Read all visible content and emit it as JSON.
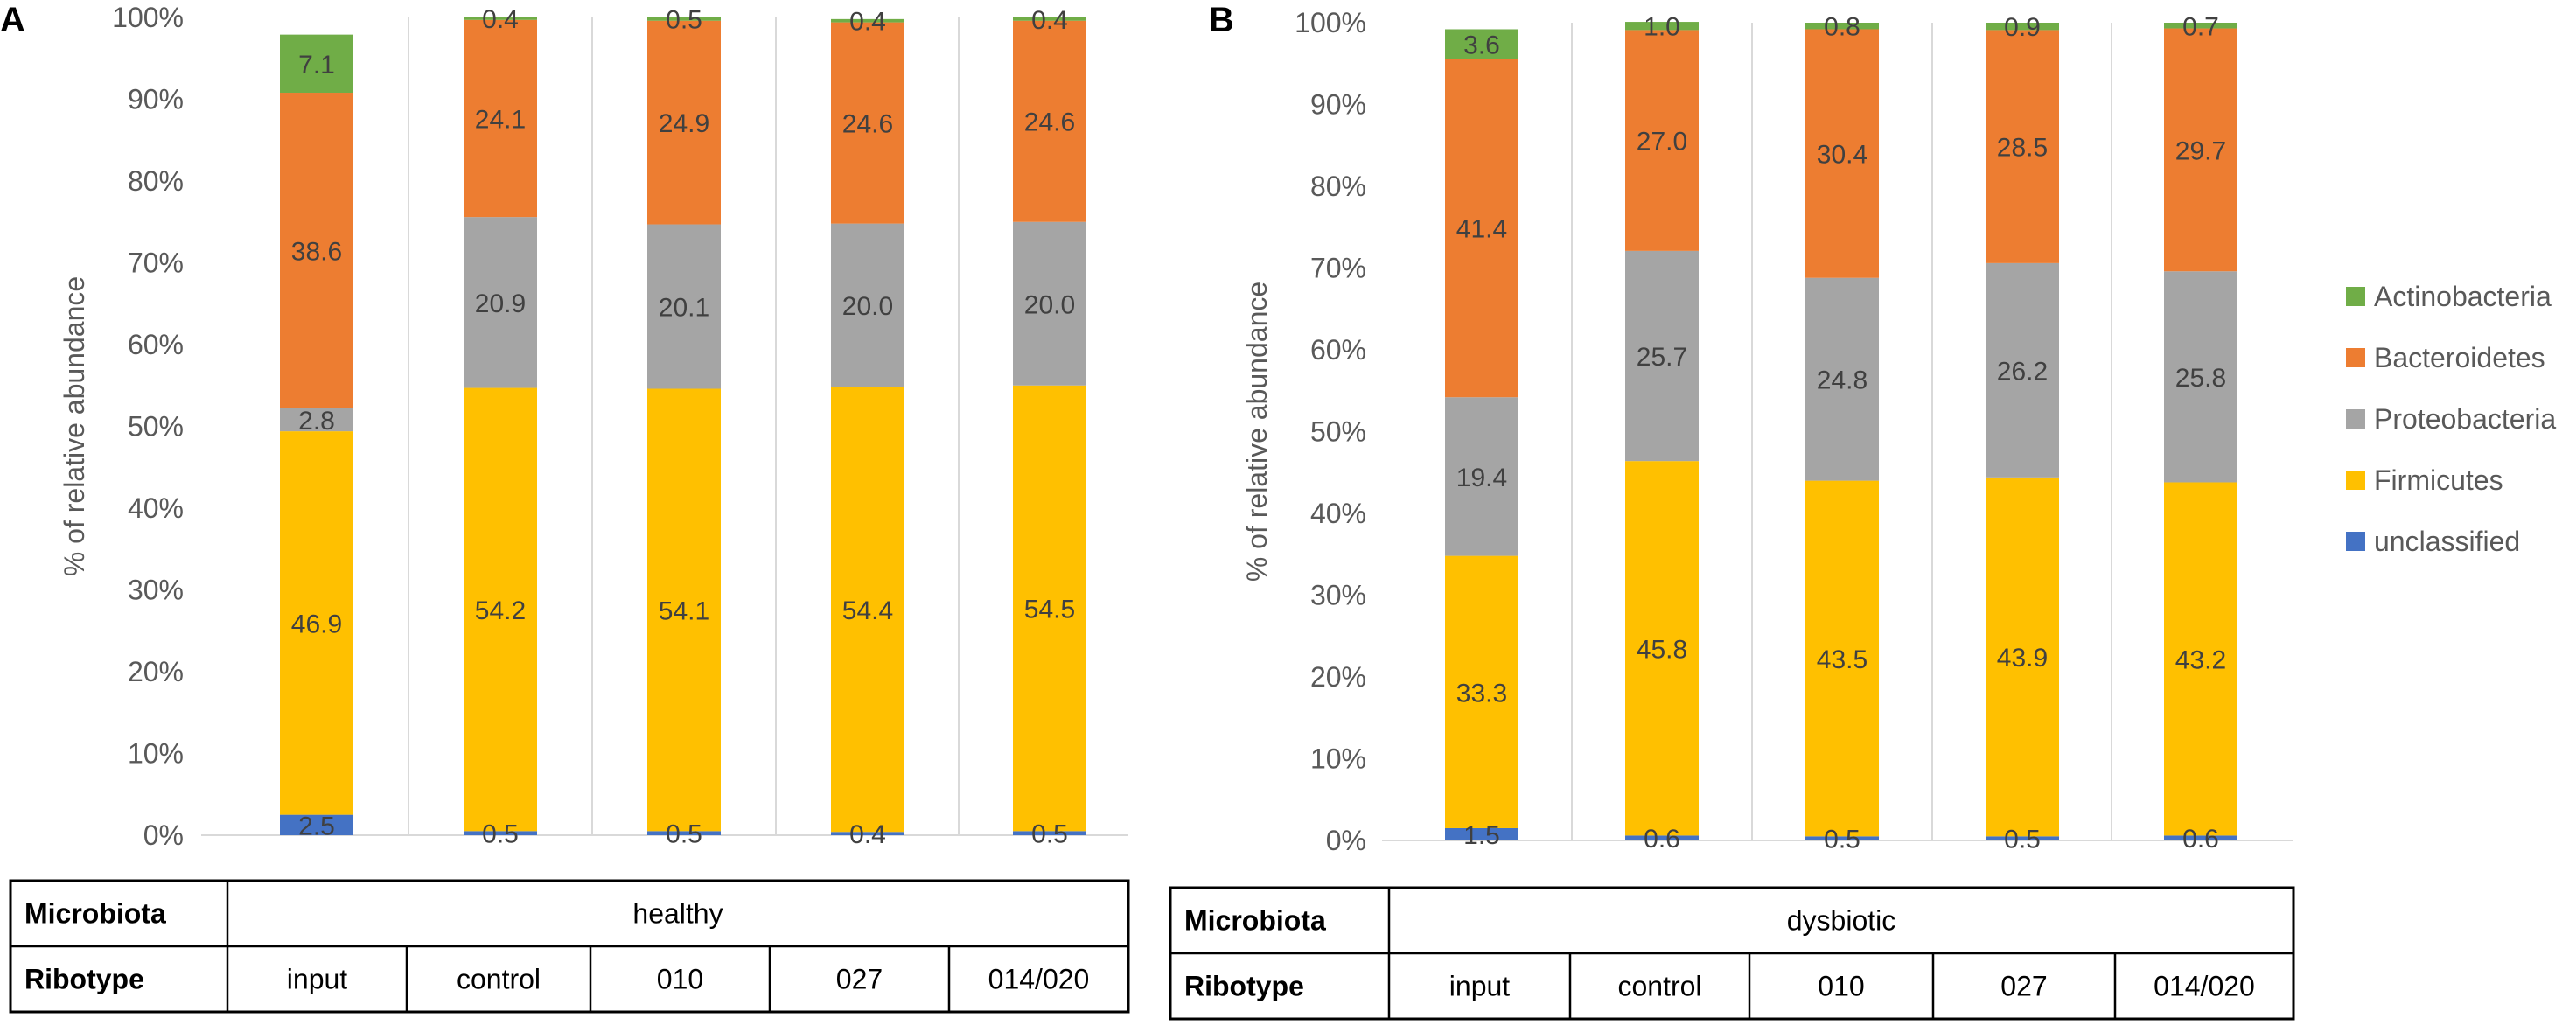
{
  "panels": [
    {
      "letter": "A",
      "ylabel": "% of relative abundance",
      "y_ticks": [
        "0%",
        "10%",
        "20%",
        "30%",
        "40%",
        "50%",
        "60%",
        "70%",
        "80%",
        "90%",
        "100%"
      ],
      "table": {
        "row1_label": "Microbiota",
        "row1_value": "healthy",
        "row2_label": "Ribotype",
        "ribotypes": [
          "input",
          "control",
          "010",
          "027",
          "014/020"
        ]
      }
    },
    {
      "letter": "B",
      "ylabel": "% of relative abundance",
      "y_ticks": [
        "0%",
        "10%",
        "20%",
        "30%",
        "40%",
        "50%",
        "60%",
        "70%",
        "80%",
        "90%",
        "100%"
      ],
      "table": {
        "row1_label": "Microbiota",
        "row1_value": "dysbiotic",
        "row2_label": "Ribotype",
        "ribotypes": [
          "input",
          "control",
          "010",
          "027",
          "014/020"
        ]
      }
    }
  ],
  "legend": [
    {
      "name": "Actinobacteria",
      "color": "#70AD47"
    },
    {
      "name": "Bacteroidetes",
      "color": "#ED7D31"
    },
    {
      "name": "Proteobacteria",
      "color": "#A5A5A5"
    },
    {
      "name": "Firmicutes",
      "color": "#FFC000"
    },
    {
      "name": "unclassified",
      "color": "#4472C4"
    }
  ],
  "chart_data": [
    {
      "type": "bar",
      "stacked": true,
      "panel": "A",
      "title": "",
      "xlabel": "",
      "ylabel": "% of relative abundance",
      "ylim": [
        0,
        100
      ],
      "categories": [
        "input",
        "control",
        "010",
        "027",
        "014/020"
      ],
      "series": [
        {
          "name": "unclassified",
          "color": "#4472C4",
          "values": [
            2.5,
            0.5,
            0.5,
            0.4,
            0.5
          ],
          "labels": [
            "2.5",
            "0.5",
            "0.5",
            "0.4",
            "0.5"
          ]
        },
        {
          "name": "Firmicutes",
          "color": "#FFC000",
          "values": [
            46.9,
            54.2,
            54.1,
            54.4,
            54.5
          ],
          "labels": [
            "46.9",
            "54.2",
            "54.1",
            "54.4",
            "54.5"
          ]
        },
        {
          "name": "Proteobacteria",
          "color": "#A5A5A5",
          "values": [
            2.8,
            20.9,
            20.1,
            20.0,
            20.0
          ],
          "labels": [
            "2.8",
            "20.9",
            "20.1",
            "20.0",
            "20.0"
          ]
        },
        {
          "name": "Bacteroidetes",
          "color": "#ED7D31",
          "values": [
            38.6,
            24.1,
            24.9,
            24.6,
            24.6
          ],
          "labels": [
            "38.6",
            "24.1",
            "24.9",
            "24.6",
            "24.6"
          ]
        },
        {
          "name": "Actinobacteria",
          "color": "#70AD47",
          "values": [
            7.1,
            0.4,
            0.5,
            0.4,
            0.4
          ],
          "labels": [
            "7.1",
            "0.4",
            "0.5",
            "0.4",
            "0.4"
          ]
        }
      ]
    },
    {
      "type": "bar",
      "stacked": true,
      "panel": "B",
      "title": "",
      "xlabel": "",
      "ylabel": "% of relative abundance",
      "ylim": [
        0,
        100
      ],
      "categories": [
        "input",
        "control",
        "010",
        "027",
        "014/020"
      ],
      "series": [
        {
          "name": "unclassified",
          "color": "#4472C4",
          "values": [
            1.5,
            0.6,
            0.5,
            0.5,
            0.6
          ],
          "labels": [
            "1.5",
            "0.6",
            "0.5",
            "0.5",
            "0.6"
          ]
        },
        {
          "name": "Firmicutes",
          "color": "#FFC000",
          "values": [
            33.3,
            45.8,
            43.5,
            43.9,
            43.2
          ],
          "labels": [
            "33.3",
            "45.8",
            "43.5",
            "43.9",
            "43.2"
          ]
        },
        {
          "name": "Proteobacteria",
          "color": "#A5A5A5",
          "values": [
            19.4,
            25.7,
            24.8,
            26.2,
            25.8
          ],
          "labels": [
            "19.4",
            "25.7",
            "24.8",
            "26.2",
            "25.8"
          ]
        },
        {
          "name": "Bacteroidetes",
          "color": "#ED7D31",
          "values": [
            41.4,
            27.0,
            30.4,
            28.5,
            29.7
          ],
          "labels": [
            "41.4",
            "27.0",
            "30.4",
            "28.5",
            "29.7"
          ]
        },
        {
          "name": "Actinobacteria",
          "color": "#70AD47",
          "values": [
            3.6,
            1.0,
            0.8,
            0.9,
            0.7
          ],
          "labels": [
            "3.6",
            "1.0",
            "0.8",
            "0.9",
            "0.7"
          ]
        }
      ]
    }
  ]
}
